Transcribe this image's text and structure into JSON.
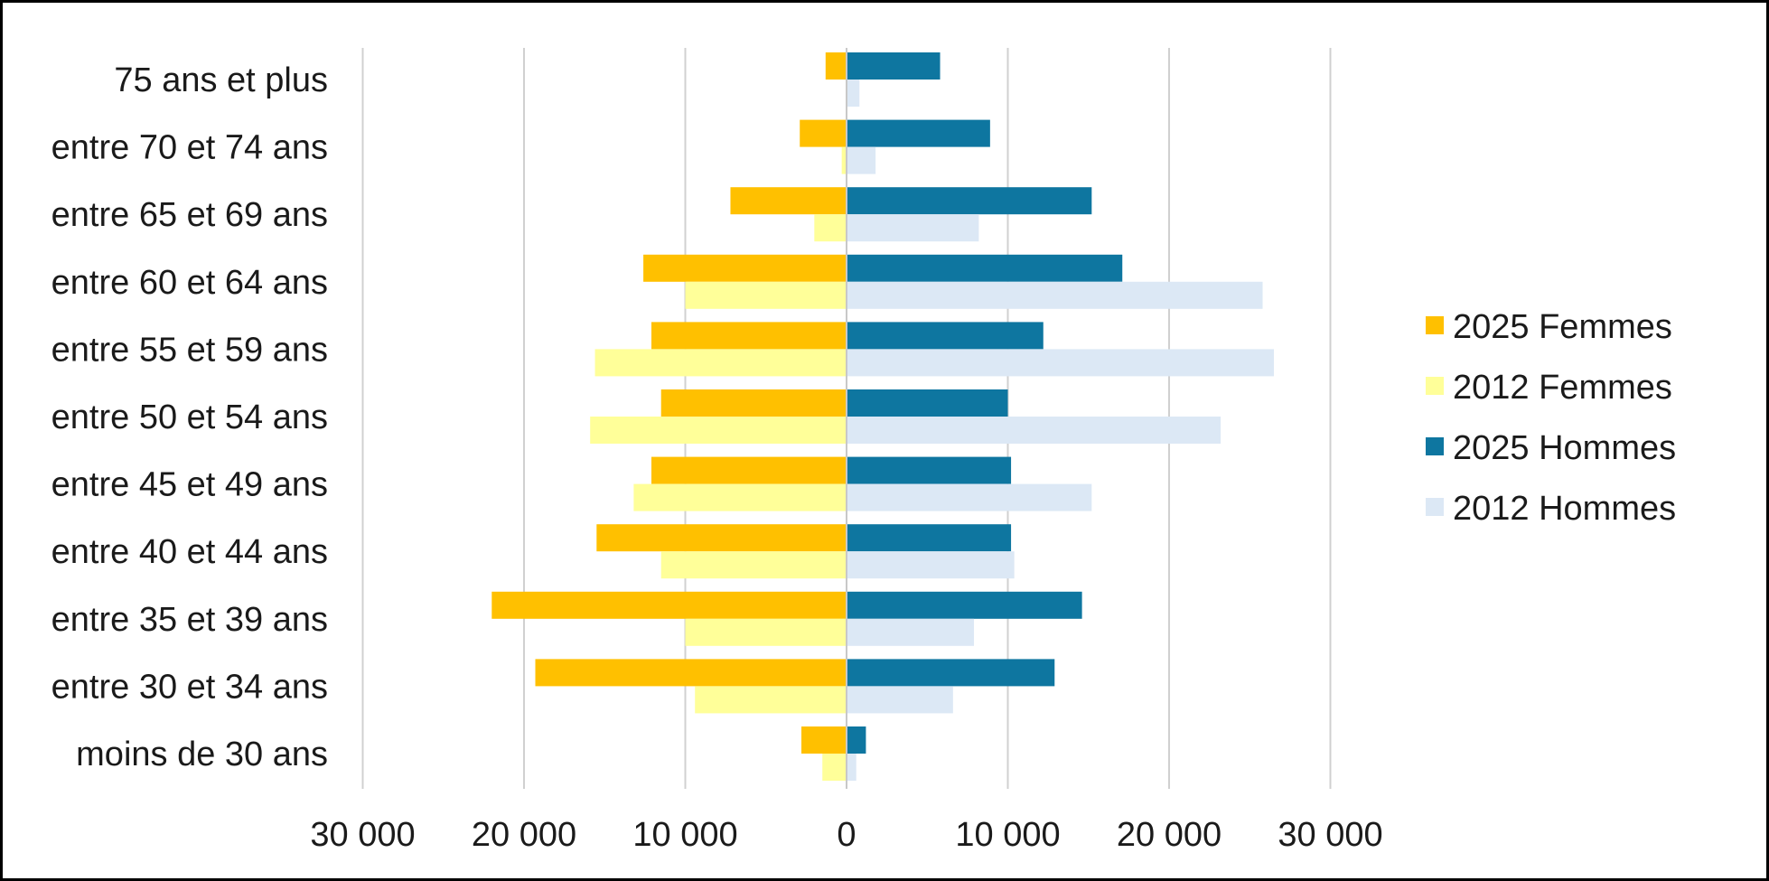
{
  "chart_data": {
    "type": "bar",
    "orientation": "horizontal-population-pyramid",
    "categories": [
      "75 ans et plus",
      "entre 70 et 74 ans",
      "entre 65 et 69 ans",
      "entre 60 et 64 ans",
      "entre 55 et 59 ans",
      "entre 50 et 54 ans",
      "entre 45 et 49 ans",
      "entre 40 et 44 ans",
      "entre 35 et 39 ans",
      "entre 30 et 34 ans",
      "moins de 30 ans"
    ],
    "series": [
      {
        "name": "2025 Femmes",
        "color": "#FFC000",
        "side": "left",
        "values": [
          1300,
          2900,
          7200,
          12600,
          12100,
          11500,
          12100,
          15500,
          22000,
          19300,
          2800
        ]
      },
      {
        "name": "2012 Femmes",
        "color": "#FFFF99",
        "side": "left",
        "values": [
          0,
          300,
          2000,
          10000,
          15600,
          15900,
          13200,
          11500,
          10000,
          9400,
          1500
        ]
      },
      {
        "name": "2025 Hommes",
        "color": "#0E76A0",
        "side": "right",
        "values": [
          5800,
          8900,
          15200,
          17100,
          12200,
          10000,
          10200,
          10200,
          14600,
          12900,
          1200
        ]
      },
      {
        "name": "2012 Hommes",
        "color": "#DCE8F5",
        "side": "right",
        "values": [
          800,
          1800,
          8200,
          25800,
          26500,
          23200,
          15200,
          10400,
          7900,
          6600,
          600
        ]
      }
    ],
    "x_ticks": [
      "30 000",
      "20 000",
      "10 000",
      "0",
      "10 000",
      "20 000",
      "30 000"
    ],
    "xlim": [
      -30000,
      30000
    ],
    "grid": true,
    "legend_position": "right"
  }
}
